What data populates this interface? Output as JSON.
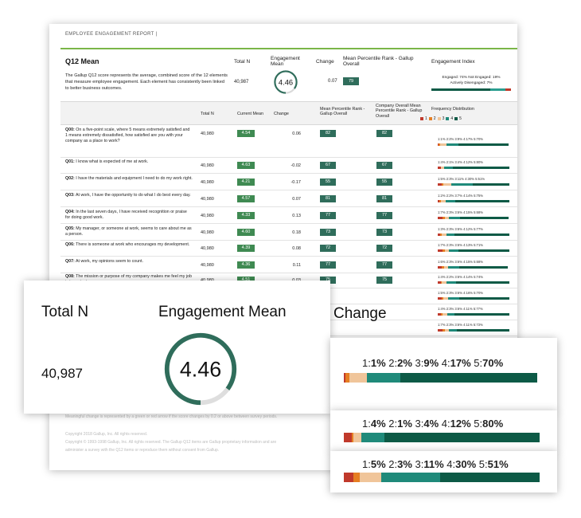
{
  "report": {
    "title": "EMPLOYEE ENGAGEMENT REPORT |",
    "q12_title": "Q12 Mean",
    "q12_description": "The Gallup Q12 score represents the average, combined score of the 12 elements that measure employee engagement.  Each element has consistently been linked to better business outcomes.",
    "summary_headers": {
      "total_n": "Total N",
      "engagement_mean": "Engagement Mean",
      "change": "Change",
      "mean_percentile": "Mean Percentile Rank - Gallup Overall",
      "engagement_index": "Engagement Index"
    },
    "summary_values": {
      "total_n": "40,987",
      "engagement_mean": "4.46",
      "change": "0.07",
      "percentile_rank": "79"
    },
    "engagement_index": {
      "line1": "Engaged: 74% Not Engaged: 19%",
      "line2": "Actively Disengaged: 7%",
      "bar": [
        74,
        19,
        7
      ]
    },
    "table_headers": {
      "total_n": "Total N",
      "current_mean": "Current Mean",
      "change": "Change",
      "mean_percentile": "Mean Percentile Rank - Gallup Overall",
      "company_overall": "Company Overall Mean Percentile Rank - Gallup Overall",
      "frequency": "Frequency Distribution",
      "legend": [
        "1",
        "2",
        "3",
        "4",
        "5"
      ]
    },
    "rows": [
      {
        "id": "Q00:",
        "text": "On a five-point scale, where 5 means extremely satisfied and 1 means extremely dissatisfied, how satisfied are you with your company as a place to work?",
        "n": "40,980",
        "mean": "4.54",
        "change": "0.06",
        "mp": "82",
        "cp": "82",
        "freq": "1:1% 2:2% 3:9% 4:17% 5:70%",
        "dist": [
          1,
          2,
          9,
          17,
          70
        ]
      },
      {
        "id": "Q01:",
        "text": "I know what is expected of me at work.",
        "n": "40,980",
        "mean": "4.63",
        "change": "-0.02",
        "mp": "67",
        "cp": "67",
        "freq": "1:4% 2:1% 3:4% 4:12% 5:80%",
        "dist": [
          4,
          1,
          4,
          12,
          80
        ]
      },
      {
        "id": "Q02:",
        "text": "I have the materials and equipment I need to do my work right.",
        "n": "40,980",
        "mean": "4.21",
        "change": "-0.17",
        "mp": "55",
        "cp": "55",
        "freq": "1:5% 2:3% 3:11% 4:30% 5:51%",
        "dist": [
          5,
          3,
          11,
          30,
          51
        ]
      },
      {
        "id": "Q03:",
        "text": "At work, I have the opportunity to do what I do best every day.",
        "n": "40,980",
        "mean": "4.57",
        "change": "0.07",
        "mp": "81",
        "cp": "81",
        "freq": "1:2% 2:2% 3:7% 4:14% 5:75%",
        "dist": [
          2,
          2,
          7,
          14,
          75
        ]
      },
      {
        "id": "Q04:",
        "text": "In the last seven days, I have received recognition or praise for doing good work.",
        "n": "40,980",
        "mean": "4.33",
        "change": "0.13",
        "mp": "77",
        "cp": "77",
        "freq": "1:7% 2:3% 3:6% 4:15% 5:68%",
        "dist": [
          7,
          3,
          6,
          15,
          68
        ]
      },
      {
        "id": "Q05:",
        "text": "My manager, or someone at work, seems to care about me as a person.",
        "n": "40,980",
        "mean": "4.60",
        "change": "0.18",
        "mp": "73",
        "cp": "73",
        "freq": "1:3% 2:3% 3:6% 4:12% 5:77%",
        "dist": [
          3,
          3,
          6,
          12,
          77
        ]
      },
      {
        "id": "Q06:",
        "text": "There is someone at work who encourages my development.",
        "n": "40,980",
        "mean": "4.39",
        "change": "0.08",
        "mp": "72",
        "cp": "72",
        "freq": "1:7% 2:3% 3:6% 4:13% 5:71%",
        "dist": [
          7,
          3,
          6,
          13,
          71
        ]
      },
      {
        "id": "Q07:",
        "text": "At work, my opinions seem to count.",
        "n": "40,980",
        "mean": "4.36",
        "change": "0.11",
        "mp": "77",
        "cp": "77",
        "freq": "1:6% 2:3% 3:6% 4:15% 5:68%",
        "dist": [
          6,
          3,
          6,
          15,
          68
        ]
      },
      {
        "id": "Q08:",
        "text": "The mission or purpose of my company makes me feel my job is important.",
        "n": "40,980",
        "mean": "4.51",
        "change": "0.03",
        "mp": "75",
        "cp": "75",
        "freq": "1:4% 2:2% 3:6% 4:14% 5:74%",
        "dist": [
          4,
          2,
          6,
          14,
          74
        ]
      },
      {
        "id": "Q09:",
        "text": "My coworkers are committed to doing quality",
        "n": "",
        "mean": "",
        "change": "",
        "mp": "",
        "cp": "",
        "freq": "1:5% 2:3% 3:6% 4:16% 5:70%",
        "dist": [
          5,
          3,
          6,
          16,
          70
        ]
      },
      {
        "id": "",
        "text": "",
        "n": "",
        "mean": "",
        "change": "",
        "mp": "",
        "cp": "",
        "freq": "1:4% 2:3% 3:6% 4:11% 5:77%",
        "dist": [
          4,
          3,
          6,
          11,
          77
        ]
      },
      {
        "id": "",
        "text": "",
        "n": "",
        "mean": "",
        "change": "",
        "mp": "",
        "cp": "",
        "freq": "1:7% 2:3% 3:6% 4:11% 5:73%",
        "dist": [
          7,
          3,
          6,
          11,
          73
        ]
      },
      {
        "id": "",
        "text": "",
        "n": "",
        "mean": "",
        "change": "",
        "mp": "",
        "cp": "",
        "freq": "1:4% 2:2% 3:6% 4:13% 5:75%",
        "dist": [
          4,
          2,
          6,
          13,
          75
        ]
      }
    ],
    "footnotes": {
      "line1": "Meaningful change is represented by a green or red arrow if the score changes by 0.2 or above between survey periods.",
      "line2": "Copyright 2018 Gallup, Inc. All rights reserved.",
      "line3": "Copyright © 1993-1998 Gallup, Inc. All rights reserved. The Gallup Q12 items are Gallup proprietary information and are",
      "line4": "administer a survey with the Q12 items or reproduce them without consent from Gallup."
    }
  },
  "callout": {
    "total_n_label": "Total N",
    "engagement_mean_label": "Engagement Mean",
    "change_label": "Change",
    "total_n_value": "40,987",
    "engagement_mean_value": "4.46",
    "gauge_fraction": 0.85,
    "freq1": {
      "parts": [
        "1:",
        "1%",
        " 2:",
        "2%",
        " 3:",
        "9%",
        " 4:",
        "17%",
        " 5:",
        "70%"
      ],
      "dist": [
        1,
        2,
        9,
        17,
        70
      ]
    },
    "freq2": {
      "parts": [
        "1:",
        "4%",
        " 2:",
        "1%",
        " 3:",
        "4%",
        " 4:",
        "12%",
        " 5:",
        "80%"
      ],
      "dist": [
        4,
        1,
        4,
        12,
        80
      ]
    },
    "freq3": {
      "parts": [
        "1:",
        "5%",
        " 2:",
        "3%",
        " 3:",
        "11%",
        " 4:",
        "30%",
        " 5:",
        "51%"
      ],
      "dist": [
        5,
        3,
        11,
        30,
        51
      ]
    }
  },
  "colors": {
    "accent_green": "#7ab648",
    "dark_green": "#2f6d5b",
    "mean_green": "#3f8a52",
    "scale": [
      "#c0392b",
      "#e67e22",
      "#f0c59a",
      "#1f8a7a",
      "#0d5a46"
    ],
    "index": [
      "#0d5a46",
      "#2a9d8f",
      "#c0392b"
    ]
  }
}
